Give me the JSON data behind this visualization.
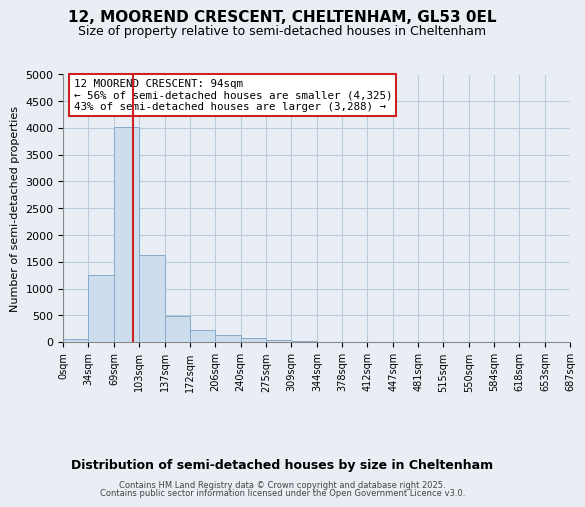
{
  "title1": "12, MOOREND CRESCENT, CHELTENHAM, GL53 0EL",
  "title2": "Size of property relative to semi-detached houses in Cheltenham",
  "xlabel": "Distribution of semi-detached houses by size in Cheltenham",
  "ylabel": "Number of semi-detached properties",
  "property_size": 94,
  "annotation_title": "12 MOOREND CRESCENT: 94sqm",
  "annotation_line1": "← 56% of semi-detached houses are smaller (4,325)",
  "annotation_line2": "43% of semi-detached houses are larger (3,288) →",
  "footer1": "Contains HM Land Registry data © Crown copyright and database right 2025.",
  "footer2": "Contains public sector information licensed under the Open Government Licence v3.0.",
  "bin_edges": [
    0,
    34,
    69,
    103,
    137,
    172,
    206,
    240,
    275,
    309,
    344,
    378,
    412,
    447,
    481,
    515,
    550,
    584,
    618,
    653,
    687
  ],
  "bin_labels": [
    "0sqm",
    "34sqm",
    "69sqm",
    "103sqm",
    "137sqm",
    "172sqm",
    "206sqm",
    "240sqm",
    "275sqm",
    "309sqm",
    "344sqm",
    "378sqm",
    "412sqm",
    "447sqm",
    "481sqm",
    "515sqm",
    "550sqm",
    "584sqm",
    "618sqm",
    "653sqm",
    "687sqm"
  ],
  "counts": [
    50,
    1250,
    4020,
    1625,
    490,
    215,
    140,
    70,
    40,
    15,
    5,
    3,
    2,
    1,
    1,
    0,
    0,
    0,
    0,
    0
  ],
  "bar_color": "#ccdded",
  "bar_edge_color": "#88aacc",
  "vline_color": "#cc2222",
  "annotation_box_color": "#cc2222",
  "ylim": [
    0,
    5000
  ],
  "yticks": [
    0,
    500,
    1000,
    1500,
    2000,
    2500,
    3000,
    3500,
    4000,
    4500,
    5000
  ],
  "background_color": "#f0f4f8",
  "grid_color": "#bbccdd",
  "fig_bg": "#e8eef4"
}
